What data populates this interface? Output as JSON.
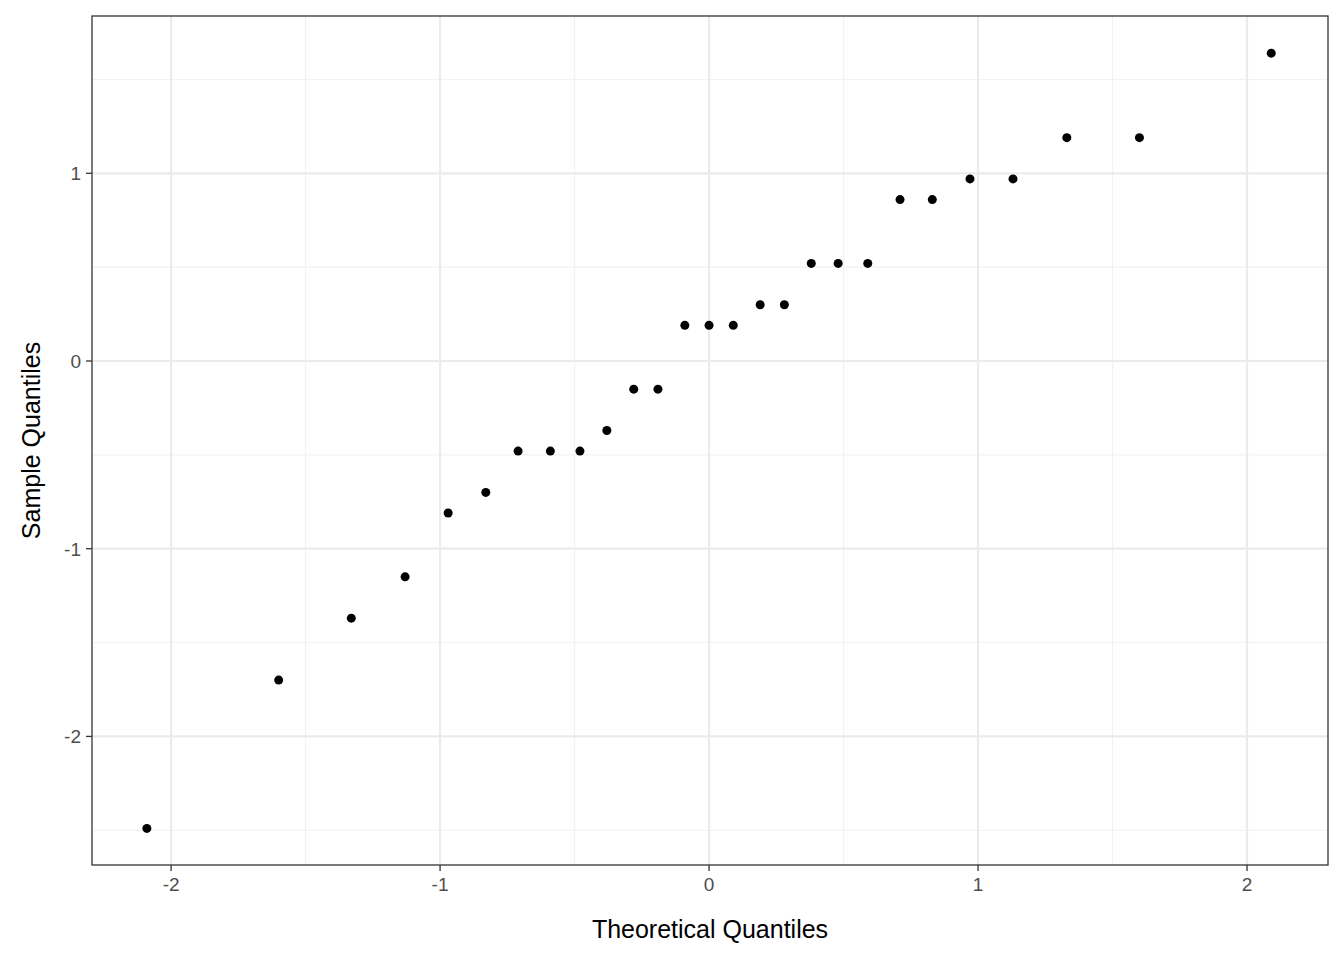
{
  "chart_data": {
    "type": "scatter",
    "x_label": "Theoretical Quantiles",
    "y_label": "Sample Quantiles",
    "x": [
      -2.09,
      -1.6,
      -1.33,
      -1.13,
      -0.97,
      -0.83,
      -0.71,
      -0.59,
      -0.48,
      -0.38,
      -0.28,
      -0.19,
      -0.09,
      0,
      0.09,
      0.19,
      0.28,
      0.38,
      0.48,
      0.59,
      0.71,
      0.83,
      0.97,
      1.13,
      1.33,
      1.6,
      2.09
    ],
    "values": [
      -2.49,
      -1.7,
      -1.37,
      -1.15,
      -0.81,
      -0.7,
      -0.48,
      -0.48,
      -0.48,
      -0.37,
      -0.15,
      -0.15,
      0.19,
      0.19,
      0.19,
      0.3,
      0.3,
      0.52,
      0.52,
      0.52,
      0.86,
      0.86,
      0.97,
      0.97,
      1.19,
      1.19,
      1.64
    ],
    "xlim": [
      -2.294,
      2.301
    ],
    "ylim": [
      -2.685,
      1.838
    ],
    "xticks": [
      -2,
      -1,
      0,
      1,
      2
    ],
    "yticks": [
      -2,
      -1,
      0,
      1
    ],
    "grid": true,
    "color": "#000000",
    "marker": "circle"
  }
}
